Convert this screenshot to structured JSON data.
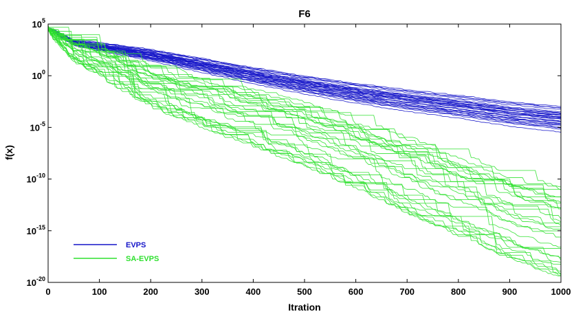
{
  "chart_data": {
    "type": "line",
    "title": "F6",
    "xlabel": "Itration",
    "ylabel": "f(x)",
    "xlim": [
      0,
      1000
    ],
    "ylim_log10": [
      -20,
      5
    ],
    "yscale": "log",
    "x_ticks": [
      0,
      100,
      200,
      300,
      400,
      500,
      600,
      700,
      800,
      900,
      1000
    ],
    "y_ticks": [
      {
        "exp": 5,
        "label": "10",
        "sup": "5"
      },
      {
        "exp": 0,
        "label": "10",
        "sup": "0"
      },
      {
        "exp": -5,
        "label": "10",
        "sup": "-5"
      },
      {
        "exp": -10,
        "label": "10",
        "sup": "-10"
      },
      {
        "exp": -15,
        "label": "10",
        "sup": "-15"
      },
      {
        "exp": -20,
        "label": "10",
        "sup": "-20"
      }
    ],
    "grid": false,
    "legend": {
      "placement": "bottom-left"
    },
    "series": [
      {
        "name": "EVPS",
        "color": "#1414c8",
        "runs": 30,
        "approx_log10_values": {
          "x": [
            0,
            50,
            100,
            200,
            300,
            400,
            500,
            600,
            700,
            800,
            900,
            1000
          ],
          "median": [
            4.6,
            3.2,
            2.8,
            2.0,
            1.0,
            0.0,
            -0.9,
            -1.7,
            -2.4,
            -3.0,
            -3.7,
            -4.2
          ]
        }
      },
      {
        "name": "SA-EVPS",
        "color": "#2ee02e",
        "runs": 30,
        "approx_log10_values": {
          "x": [
            0,
            50,
            100,
            200,
            300,
            400,
            500,
            600,
            700,
            800,
            900,
            1000
          ],
          "median": [
            4.6,
            2.5,
            1.5,
            -1.0,
            -2.5,
            -4.0,
            -5.5,
            -7.5,
            -9.5,
            -11.5,
            -13.5,
            -15.0
          ]
        }
      }
    ]
  }
}
